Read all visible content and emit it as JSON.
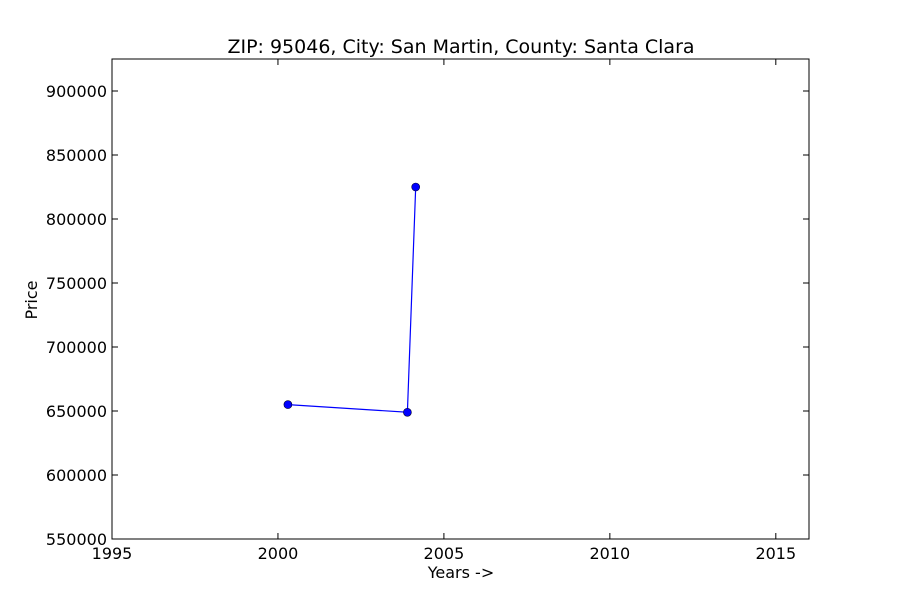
{
  "chart_data": {
    "type": "line",
    "title": "ZIP: 95046, City: San Martin, County: Santa Clara",
    "xlabel": "Years ->",
    "ylabel": "Price",
    "xlim": [
      1995,
      2016
    ],
    "ylim": [
      550000,
      925000
    ],
    "xticks": [
      1995,
      2000,
      2005,
      2010,
      2015
    ],
    "yticks": [
      550000,
      600000,
      650000,
      700000,
      750000,
      800000,
      850000,
      900000
    ],
    "grid": false,
    "legend": "none",
    "series": [
      {
        "x": [
          2000.3,
          2003.9,
          2004.15
        ],
        "y": [
          655000,
          649000,
          825000
        ],
        "color": "#0000ff",
        "marker": "circle"
      }
    ]
  }
}
